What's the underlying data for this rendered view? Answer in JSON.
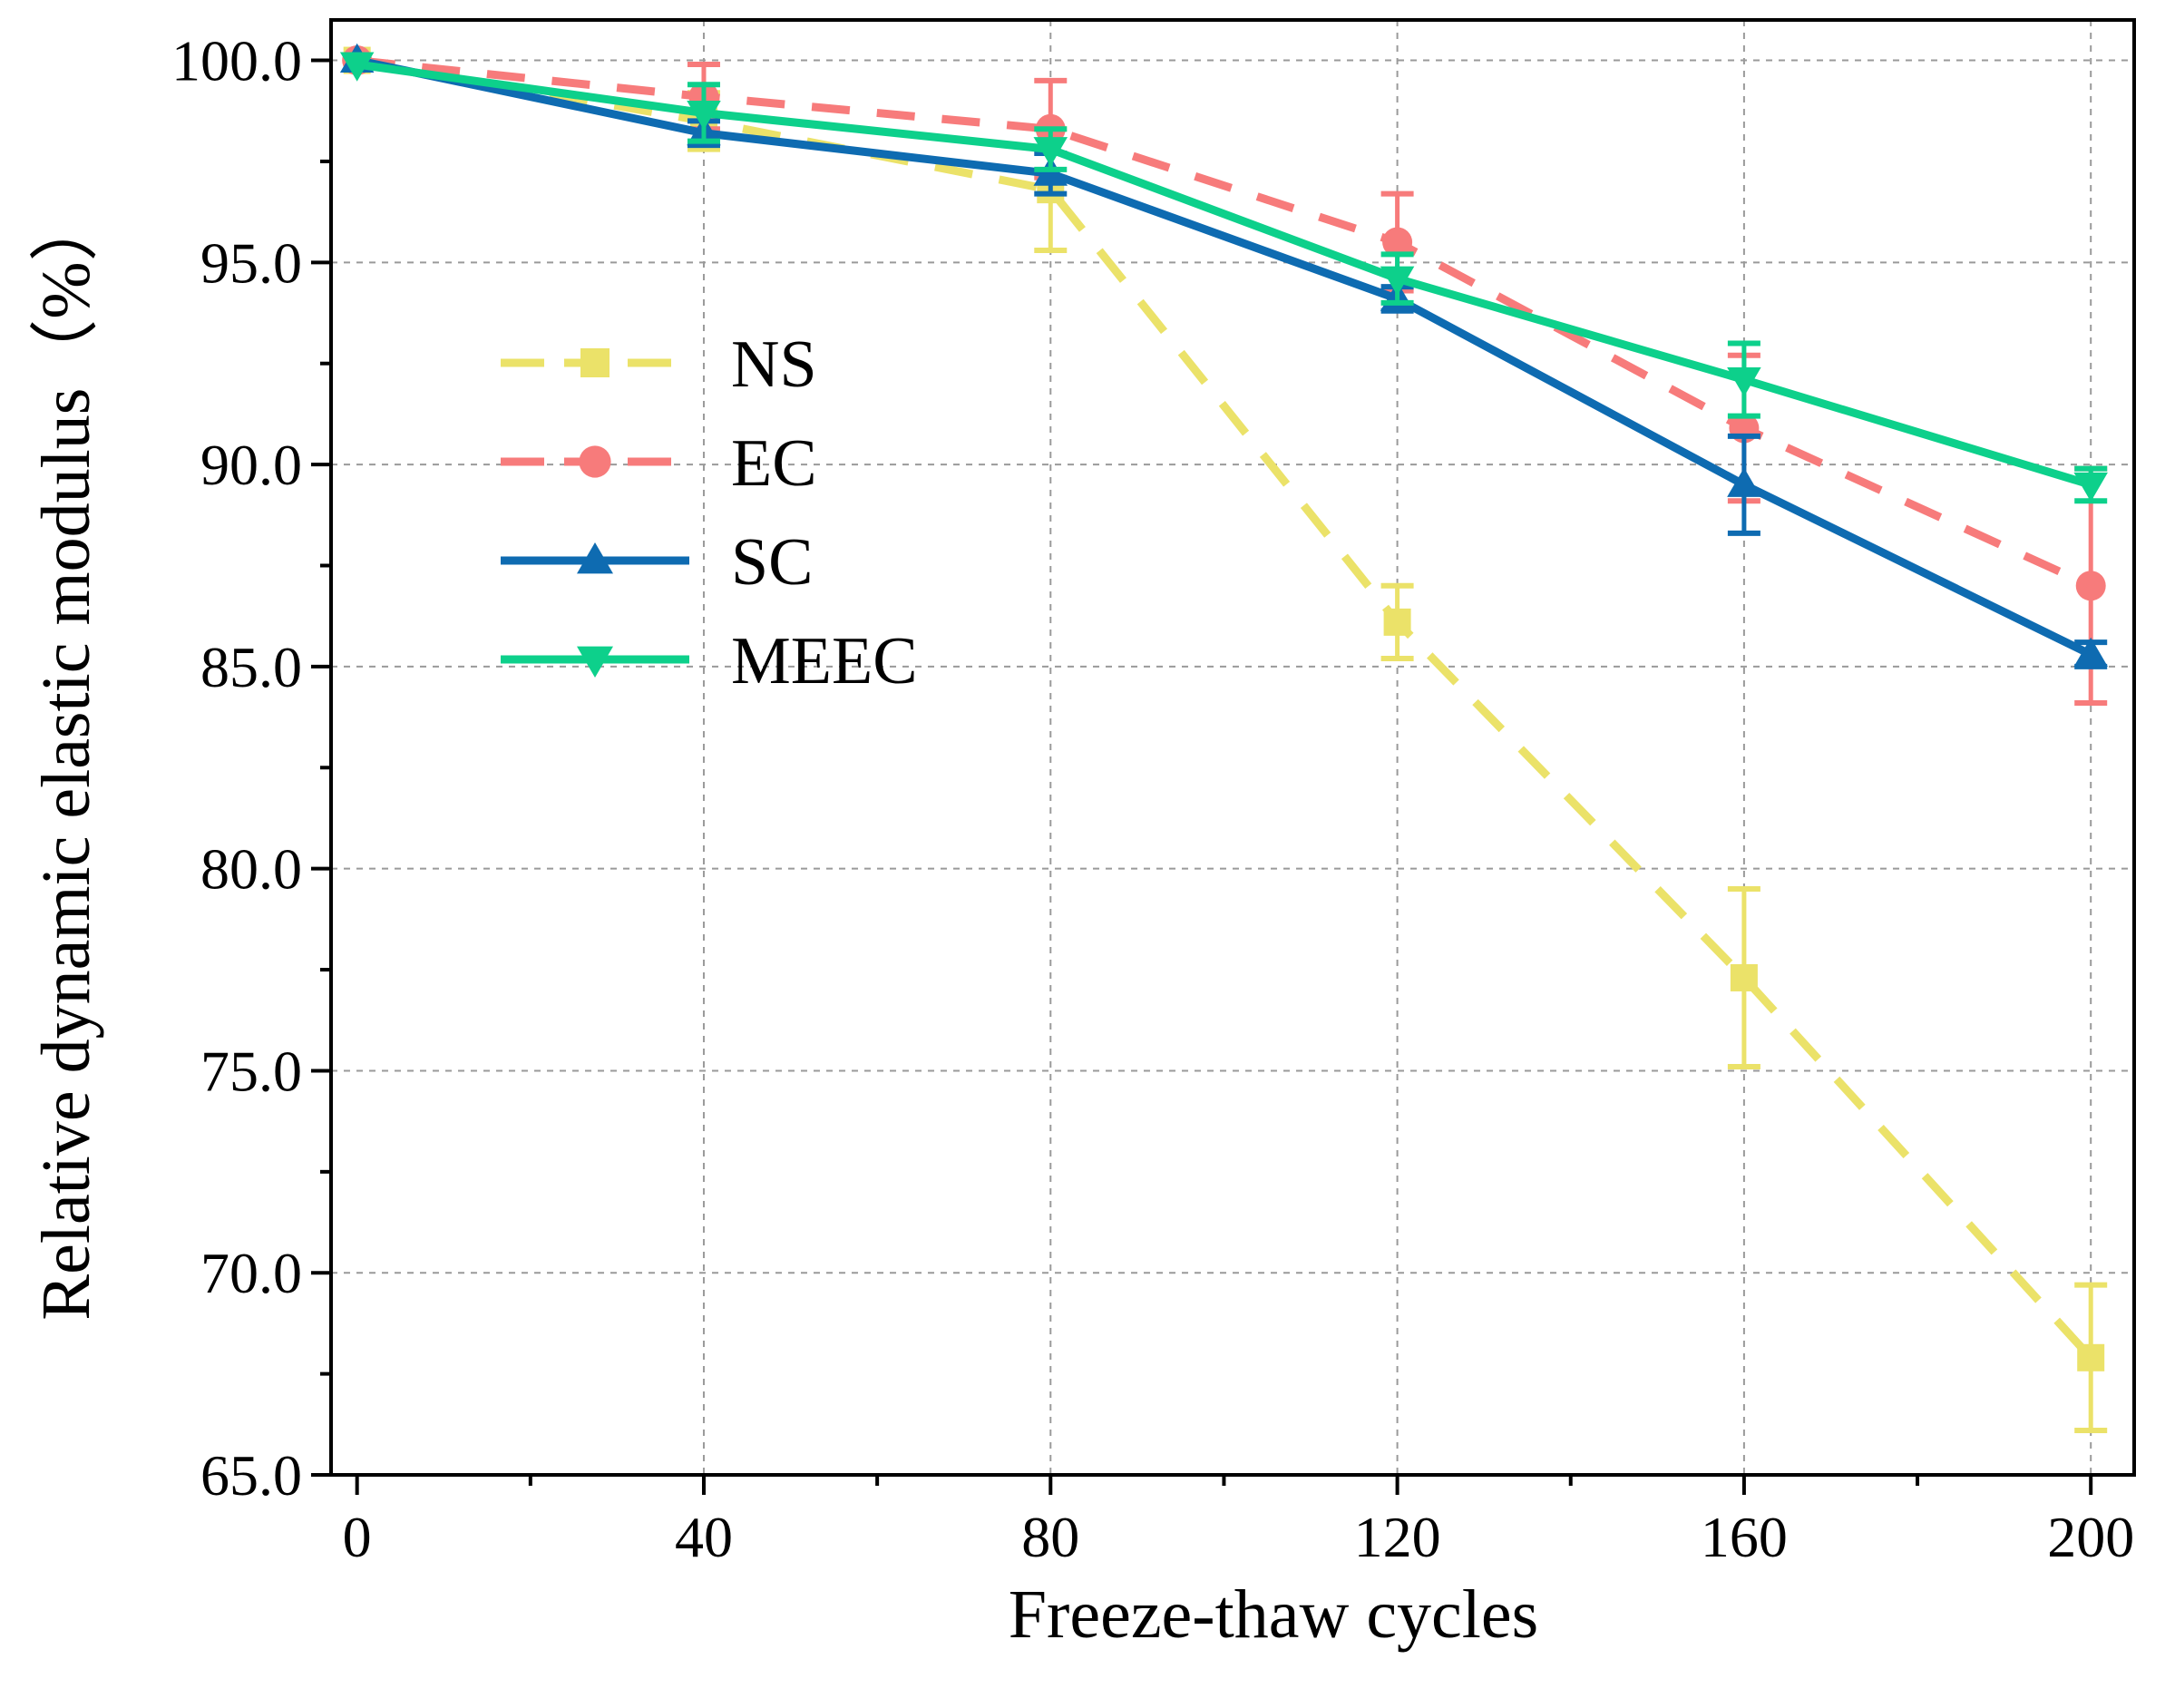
{
  "chart_data": {
    "type": "line",
    "title": "",
    "xlabel": "Freeze-thaw cycles",
    "ylabel": "Relative dynamic elastic modulus（%）",
    "x": [
      0,
      40,
      80,
      120,
      160,
      200
    ],
    "xticks": [
      0,
      40,
      80,
      120,
      160,
      200
    ],
    "xtick_labels": [
      "0",
      "40",
      "80",
      "120",
      "160",
      "200"
    ],
    "xlim": [
      -3,
      205
    ],
    "yticks": [
      65,
      70,
      75,
      80,
      85,
      90,
      95,
      100
    ],
    "ytick_labels": [
      "65.0",
      "70.0",
      "75.0",
      "80.0",
      "85.0",
      "90.0",
      "95.0",
      "100.0"
    ],
    "ylim": [
      65,
      101
    ],
    "grid": true,
    "legend_position": "upper-left",
    "series": [
      {
        "name": "NS",
        "color": "#ebe269",
        "line": "dashed",
        "marker": "square",
        "values": [
          100.0,
          98.5,
          96.8,
          86.1,
          77.3,
          67.9
        ],
        "errors": [
          0.0,
          0.7,
          1.5,
          0.9,
          2.2,
          1.8
        ]
      },
      {
        "name": "EC",
        "color": "#f77b7b",
        "line": "dashed",
        "marker": "circle",
        "values": [
          100.0,
          99.1,
          98.3,
          95.5,
          90.9,
          87.0
        ],
        "errors": [
          0.0,
          0.8,
          1.2,
          1.2,
          1.8,
          2.9
        ]
      },
      {
        "name": "SC",
        "color": "#0e6bb1",
        "line": "solid",
        "marker": "triangle-up",
        "values": [
          100.0,
          98.2,
          97.2,
          94.1,
          89.5,
          85.3
        ],
        "errors": [
          0.0,
          0.3,
          0.5,
          0.3,
          1.2,
          0.3
        ]
      },
      {
        "name": "MEEC",
        "color": "#0dd08b",
        "line": "solid",
        "marker": "triangle-down",
        "values": [
          99.9,
          98.7,
          97.8,
          94.6,
          92.1,
          89.5
        ],
        "errors": [
          0.0,
          0.7,
          0.5,
          0.6,
          0.9,
          0.4
        ]
      }
    ]
  }
}
